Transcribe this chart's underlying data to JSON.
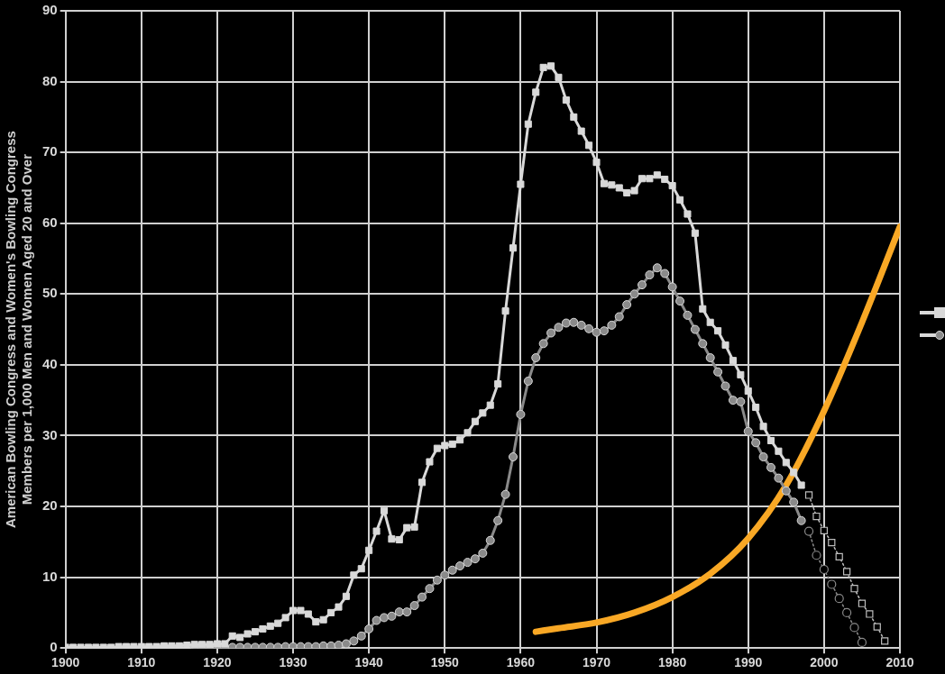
{
  "chart_data": {
    "type": "line",
    "ylabel": "American Bowling Congress and Women's Bowling Congress Members per 1,000 Men and Women Aged 20 and Over",
    "xlim": [
      1900,
      2010
    ],
    "xticks": [
      1900,
      1910,
      1920,
      1930,
      1940,
      1950,
      1960,
      1970,
      1980,
      1990,
      2000,
      2010
    ],
    "ylim": [
      0,
      90
    ],
    "yticks": [
      0,
      10,
      20,
      30,
      40,
      50,
      60,
      70,
      80,
      90
    ],
    "grid": true,
    "legend": false,
    "series": [
      {
        "color": "#d9d9d9",
        "marker": "square",
        "line_style": "solid",
        "x": [
          1900,
          1901,
          1902,
          1903,
          1904,
          1905,
          1906,
          1907,
          1908,
          1909,
          1910,
          1911,
          1912,
          1913,
          1914,
          1915,
          1916,
          1917,
          1918,
          1919,
          1920,
          1921,
          1922,
          1923,
          1924,
          1925,
          1926,
          1927,
          1928,
          1929,
          1930,
          1931,
          1932,
          1933,
          1934,
          1935,
          1936,
          1937,
          1938,
          1939,
          1940,
          1941,
          1942,
          1943,
          1944,
          1945,
          1946,
          1947,
          1948,
          1949,
          1950,
          1951,
          1952,
          1953,
          1954,
          1955,
          1956,
          1957,
          1958,
          1959,
          1960,
          1961,
          1962,
          1963,
          1964,
          1965,
          1966,
          1967,
          1968,
          1969,
          1970,
          1971,
          1972,
          1973,
          1974,
          1975,
          1976,
          1977,
          1978,
          1979,
          1980,
          1981,
          1982,
          1983,
          1984,
          1985,
          1986,
          1987,
          1988,
          1989,
          1990,
          1991,
          1992,
          1993,
          1994,
          1995,
          1996,
          1997
        ],
        "values": [
          0.1,
          0.1,
          0.1,
          0.1,
          0.1,
          0.1,
          0.1,
          0.2,
          0.2,
          0.2,
          0.2,
          0.2,
          0.2,
          0.3,
          0.3,
          0.3,
          0.4,
          0.5,
          0.5,
          0.5,
          0.6,
          0.6,
          1.7,
          1.5,
          2.0,
          2.3,
          2.7,
          3.1,
          3.5,
          4.3,
          5.3,
          5.3,
          4.8,
          3.7,
          4.0,
          5.0,
          5.8,
          7.3,
          10.3,
          11.2,
          13.8,
          16.5,
          19.4,
          15.4,
          15.3,
          17.0,
          17.1,
          23.4,
          26.3,
          28.2,
          28.6,
          28.8,
          29.4,
          30.4,
          32.0,
          33.2,
          34.3,
          37.3,
          47.6,
          56.5,
          65.5,
          74.0,
          78.5,
          82.0,
          82.2,
          80.6,
          77.4,
          75.0,
          73.0,
          71.0,
          68.6,
          65.6,
          65.4,
          65.0,
          64.3,
          64.6,
          66.3,
          66.3,
          66.8,
          66.2,
          65.3,
          63.3,
          61.3,
          58.6,
          47.9,
          46.0,
          44.8,
          42.8,
          40.6,
          38.6,
          36.3,
          34.0,
          31.3,
          29.3,
          27.8,
          26.2,
          24.8,
          23.0
        ]
      },
      {
        "color": "#bdbdbd",
        "marker": "square",
        "line_style": "dotted",
        "x": [
          1998,
          1999,
          2000,
          2001,
          2002,
          2003,
          2004,
          2005,
          2006,
          2007,
          2008
        ],
        "values": [
          21.6,
          18.6,
          16.6,
          14.9,
          12.9,
          10.8,
          8.4,
          6.3,
          4.8,
          3.0,
          1.0
        ]
      },
      {
        "color": "#8a8a8a",
        "marker": "circle",
        "line_style": "solid",
        "x": [
          1917,
          1918,
          1919,
          1920,
          1921,
          1922,
          1923,
          1924,
          1925,
          1926,
          1927,
          1928,
          1929,
          1930,
          1931,
          1932,
          1933,
          1934,
          1935,
          1936,
          1937,
          1938,
          1939,
          1940,
          1941,
          1942,
          1943,
          1944,
          1945,
          1946,
          1947,
          1948,
          1949,
          1950,
          1951,
          1952,
          1953,
          1954,
          1955,
          1956,
          1957,
          1958,
          1959,
          1960,
          1961,
          1962,
          1963,
          1964,
          1965,
          1966,
          1967,
          1968,
          1969,
          1970,
          1971,
          1972,
          1973,
          1974,
          1975,
          1976,
          1977,
          1978,
          1979,
          1980,
          1981,
          1982,
          1983,
          1984,
          1985,
          1986,
          1987,
          1988,
          1989,
          1990,
          1991,
          1992,
          1993,
          1994,
          1995,
          1996,
          1997
        ],
        "values": [
          0.1,
          0.1,
          0.1,
          0.1,
          0.1,
          0.1,
          0.1,
          0.1,
          0.1,
          0.1,
          0.1,
          0.1,
          0.2,
          0.2,
          0.2,
          0.2,
          0.2,
          0.3,
          0.3,
          0.4,
          0.6,
          1.0,
          1.7,
          2.7,
          3.9,
          4.3,
          4.5,
          5.1,
          5.1,
          6.0,
          7.2,
          8.4,
          9.6,
          10.3,
          11.0,
          11.6,
          12.1,
          12.6,
          13.4,
          15.2,
          18.0,
          21.7,
          27.0,
          33.0,
          37.7,
          41.0,
          43.0,
          44.5,
          45.3,
          45.9,
          46.0,
          45.6,
          45.1,
          44.6,
          44.8,
          45.6,
          46.8,
          48.5,
          50.0,
          51.3,
          52.7,
          53.7,
          52.9,
          51.0,
          49.0,
          47.0,
          45.0,
          43.0,
          41.0,
          39.0,
          37.0,
          35.0,
          34.8,
          30.6,
          29.0,
          27.0,
          25.5,
          24.0,
          22.2,
          20.6,
          18.0
        ]
      },
      {
        "color": "#8a8a8a",
        "marker": "circle",
        "line_style": "dotted",
        "x": [
          1998,
          1999,
          2000,
          2001,
          2002,
          2003,
          2004,
          2005
        ],
        "values": [
          16.5,
          13.1,
          11.1,
          9.0,
          7.0,
          5.0,
          2.9,
          0.8
        ]
      },
      {
        "color": "#f9a825",
        "marker": "none",
        "line_style": "solid",
        "x": [
          1962,
          1965,
          1970,
          1975,
          1980,
          1985,
          1990,
          1995,
          2000,
          2005,
          2010
        ],
        "values": [
          2.3,
          2.8,
          3.6,
          5.0,
          7.2,
          10.5,
          15.5,
          23.0,
          33.5,
          46.0,
          59.5
        ]
      }
    ]
  }
}
